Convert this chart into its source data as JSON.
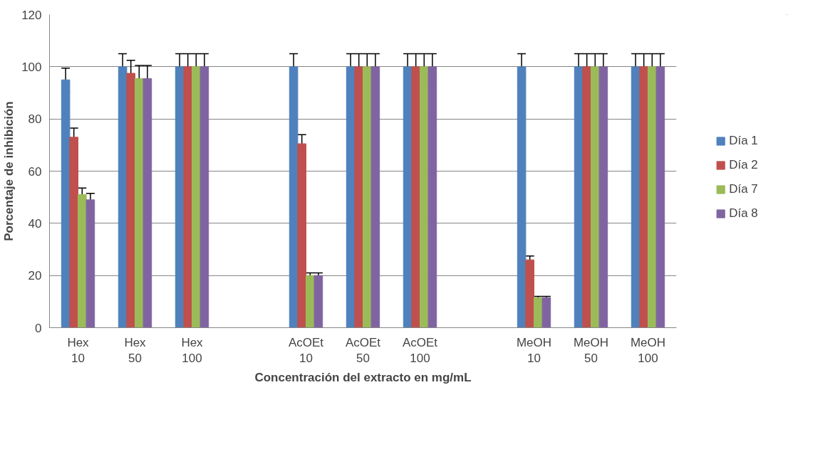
{
  "chart_data": {
    "type": "bar",
    "xlabel": "Concentración del extracto en mg/mL",
    "ylabel": "Porcentaje de inhibición",
    "categories": [
      "Hex 10",
      "Hex 50",
      "Hex 100",
      null,
      "AcOEt 10",
      "AcOEt 50",
      "AcOEt 100",
      null,
      "MeOH 10",
      "MeOH 50",
      "MeOH 100"
    ],
    "series": [
      {
        "name": "Día 1",
        "color": "#4f81bd",
        "values": [
          95,
          100,
          100,
          null,
          100,
          100,
          100,
          null,
          100,
          100,
          100
        ],
        "errors": [
          4.5,
          5,
          5,
          null,
          5,
          5,
          5,
          null,
          5,
          5,
          5
        ]
      },
      {
        "name": "Día 2",
        "color": "#c0504d",
        "values": [
          73,
          97.5,
          100,
          null,
          70.5,
          100,
          100,
          null,
          26,
          100,
          100
        ],
        "errors": [
          3.5,
          5,
          5,
          null,
          3.5,
          5,
          5,
          null,
          1.5,
          5,
          5
        ]
      },
      {
        "name": "Día 7",
        "color": "#9bbb59",
        "values": [
          51,
          95.5,
          100,
          null,
          20,
          100,
          100,
          null,
          11.5,
          100,
          100
        ],
        "errors": [
          2.5,
          5,
          5,
          null,
          1,
          5,
          5,
          null,
          0.5,
          5,
          5
        ]
      },
      {
        "name": "Día 8",
        "color": "#8064a2",
        "values": [
          49,
          95.5,
          100,
          null,
          20,
          100,
          100,
          null,
          11.5,
          100,
          100
        ],
        "errors": [
          2.5,
          5,
          5,
          null,
          1,
          5,
          5,
          null,
          0.5,
          5,
          5
        ]
      }
    ],
    "ylim": [
      0,
      120
    ],
    "yticks": [
      0,
      20,
      40,
      60,
      80,
      100,
      120
    ],
    "grid": "y",
    "legend": "right"
  }
}
